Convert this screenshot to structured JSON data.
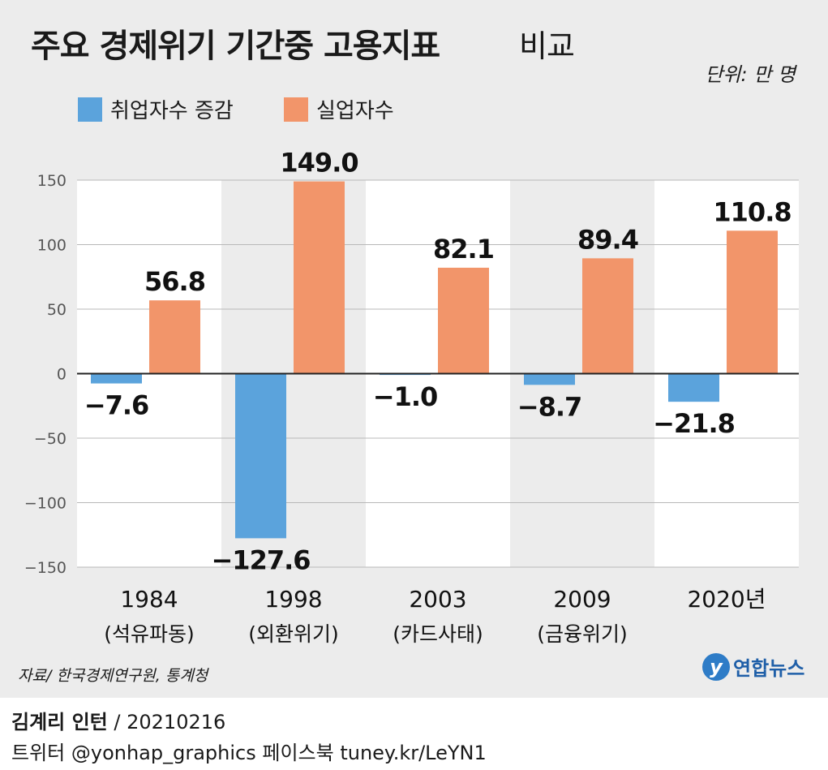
{
  "header": {
    "title_main": "주요 경제위기 기간중 고용지표",
    "title_sub": "비교",
    "unit": "단위: 만 명"
  },
  "colors": {
    "employment": "#5ba3dc",
    "unemployment": "#f2956a",
    "background": "#ececec",
    "band": "#ffffff"
  },
  "chart_data": {
    "type": "bar",
    "title": "주요 경제위기 기간중 고용지표 비교",
    "categories": [
      "1984",
      "1998",
      "2003",
      "2009",
      "2020년"
    ],
    "category_sublabels": [
      "(석유파동)",
      "(외환위기)",
      "(카드사태)",
      "(금융위기)",
      ""
    ],
    "series": [
      {
        "name": "취업자수 증감",
        "values": [
          -7.6,
          -127.6,
          -1.0,
          -8.7,
          -21.8
        ],
        "labels": [
          "−7.6",
          "−127.6",
          "−1.0",
          "−8.7",
          "−21.8"
        ]
      },
      {
        "name": "실업자수",
        "values": [
          56.8,
          149.0,
          82.1,
          89.4,
          110.8
        ],
        "labels": [
          "56.8",
          "149.0",
          "82.1",
          "89.4",
          "110.8"
        ]
      }
    ],
    "yticks": [
      150,
      100,
      50,
      0,
      -50,
      -100,
      -150
    ],
    "ytick_labels": [
      "150",
      "100",
      "50",
      "0",
      "−50",
      "−100",
      "−150"
    ],
    "ylim": [
      -150,
      150
    ],
    "xlabel": "",
    "ylabel": "",
    "grid": true,
    "legend": "top-left"
  },
  "footer": {
    "source": "자료/ 한국경제연구원, 통계청",
    "logo_text": "연합뉴스",
    "logo_mark": "y",
    "author": "김계리 인턴",
    "date": " / 20210216",
    "social": "트위터 @yonhap_graphics  페이스북 tuney.kr/LeYN1"
  }
}
